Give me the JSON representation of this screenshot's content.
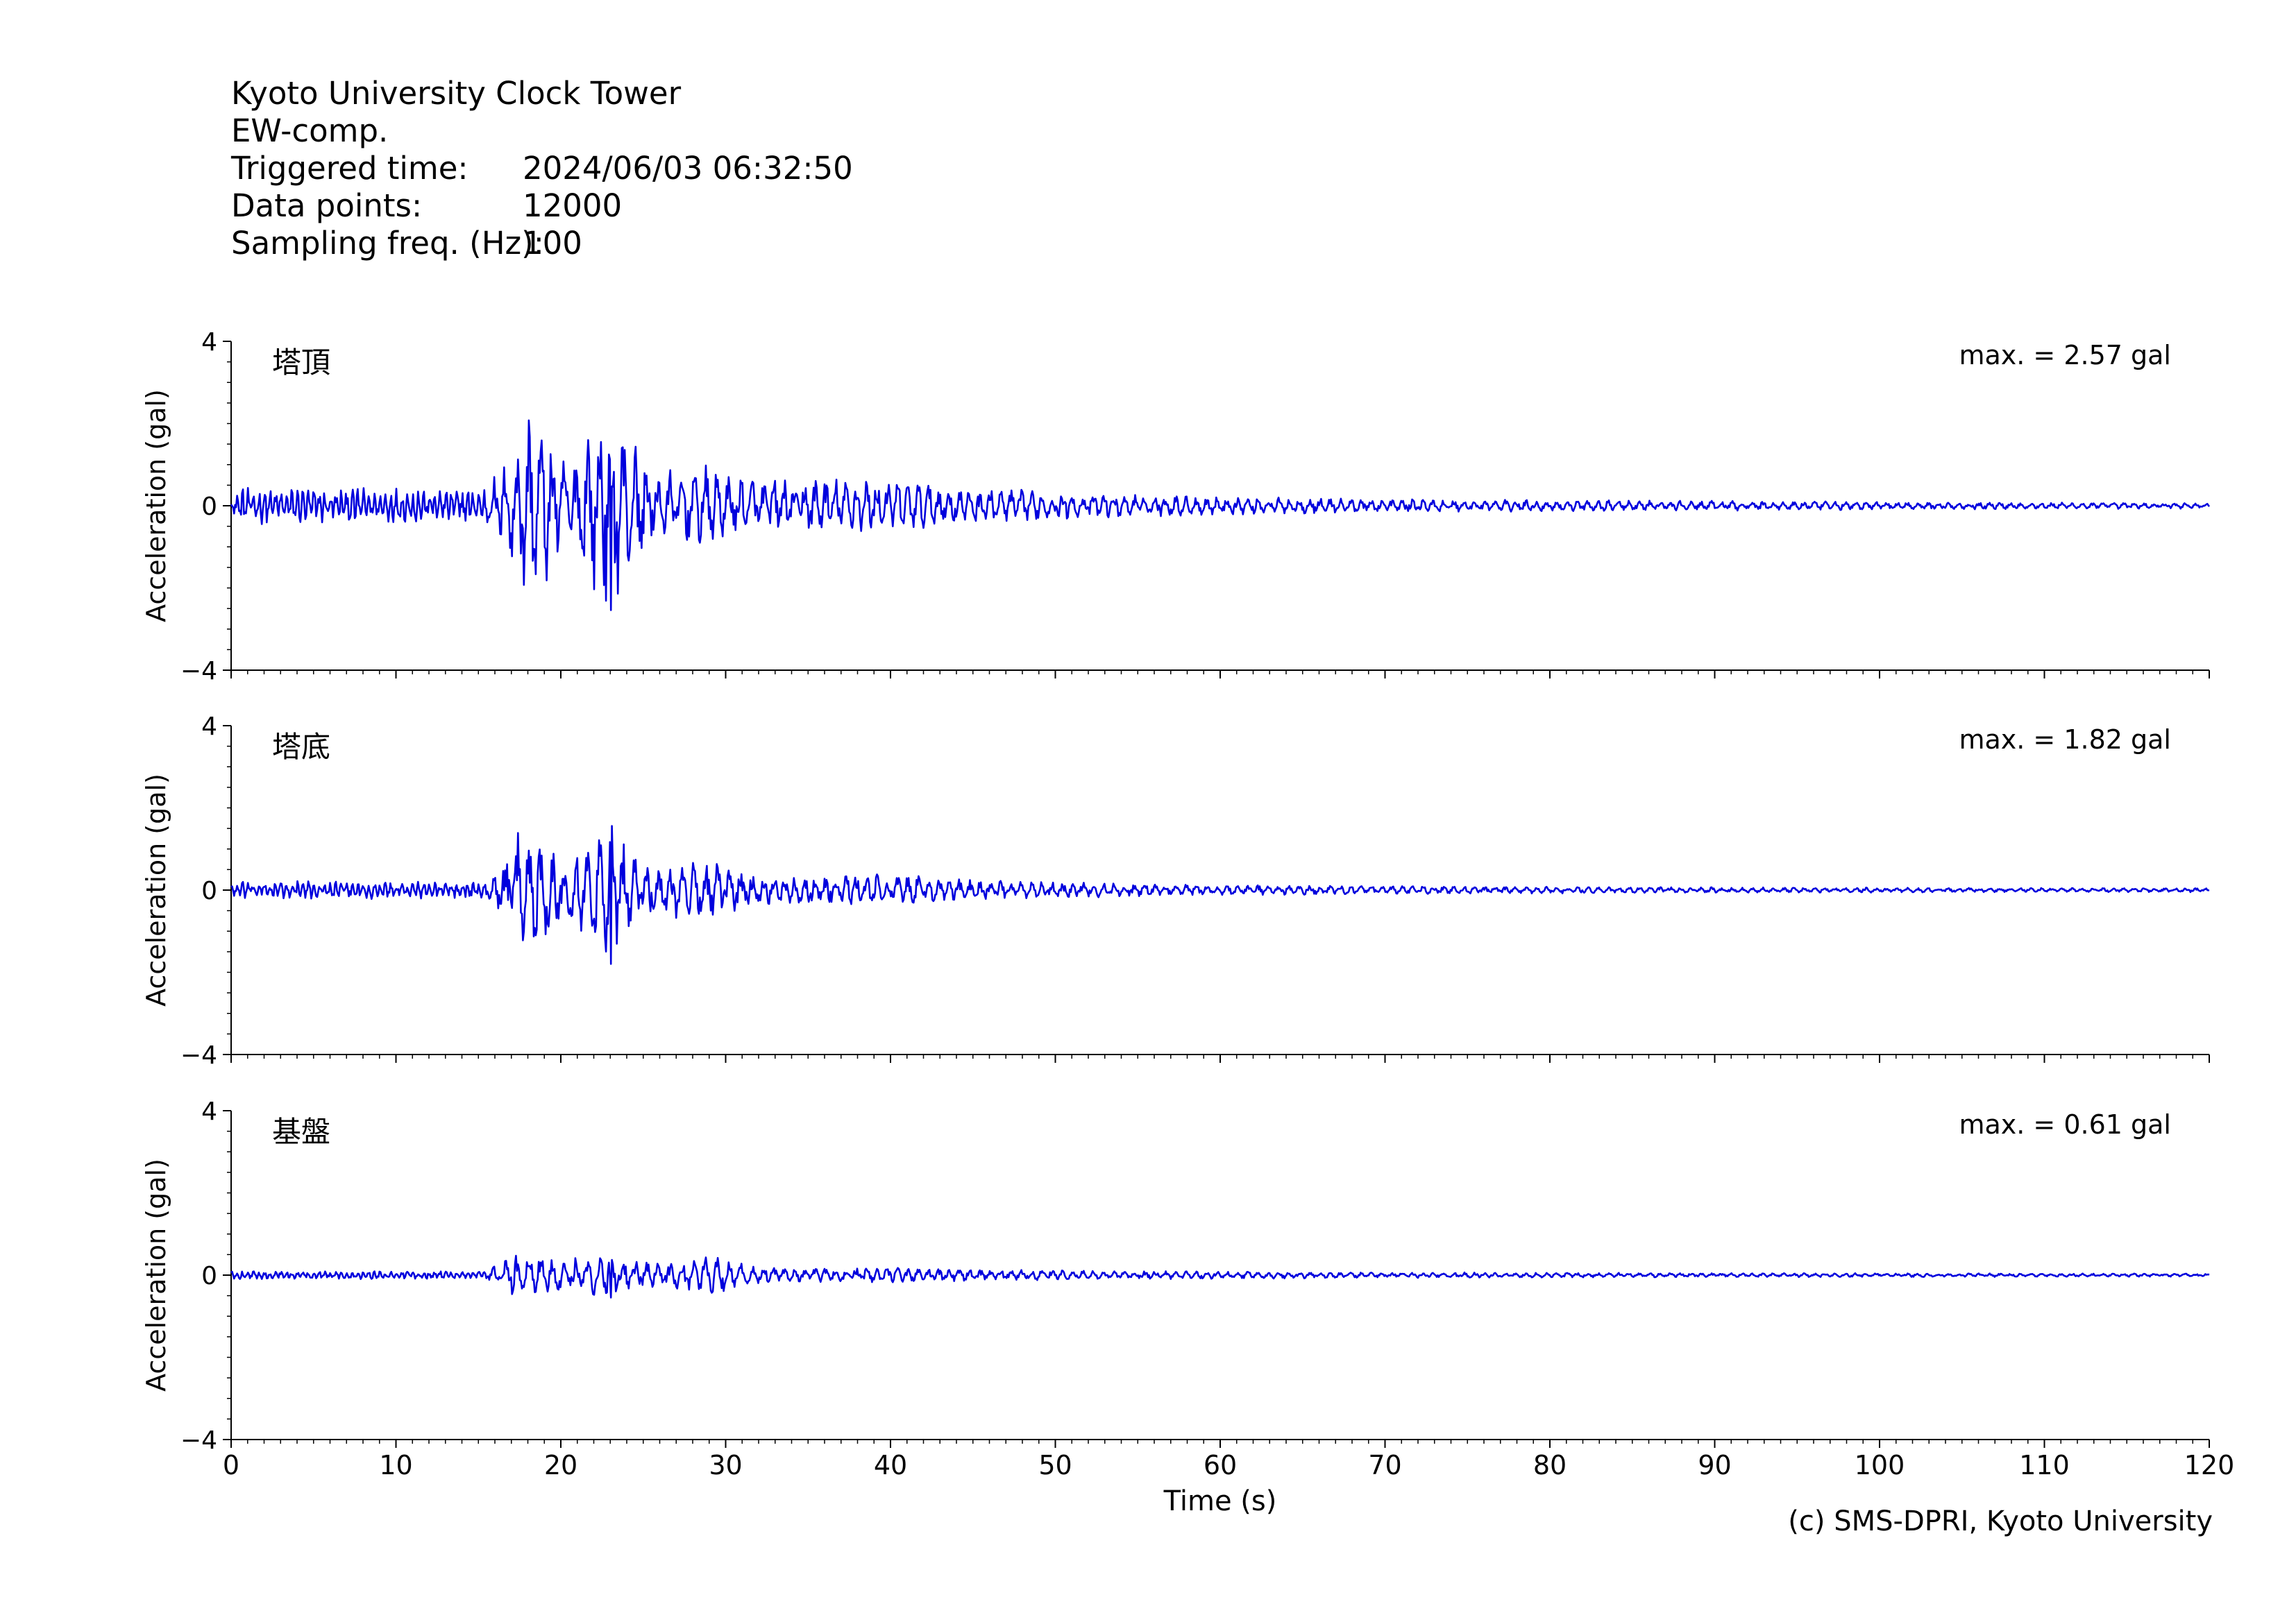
{
  "header": {
    "station": "Kyoto University Clock Tower",
    "component": "EW-comp.",
    "trigger_label": "Triggered time:",
    "trigger_value": "2024/06/03 06:32:50",
    "points_label": "Data points:",
    "points_value": "12000",
    "freq_label": "Sampling freq. (Hz):",
    "freq_value": "100"
  },
  "credit": "(c) SMS-DPRI, Kyoto University",
  "line_color": "#0000dd",
  "chart_data": {
    "type": "line",
    "xlabel": "Time (s)",
    "xlim": [
      0,
      120
    ],
    "xticks": [
      0,
      10,
      20,
      30,
      40,
      50,
      60,
      70,
      80,
      90,
      100,
      110,
      120
    ],
    "panels": [
      {
        "name": "塔頂",
        "max_label": "max. = 2.57 gal",
        "ylabel": "Acceleration (gal)",
        "ylim": [
          -4,
          4
        ],
        "yticks": [
          4,
          0,
          -4
        ],
        "ytick_labels": [
          "4",
          "0",
          "−4"
        ],
        "envelope_t": [
          0,
          15.5,
          16.5,
          17.5,
          19,
          20.5,
          21.5,
          23,
          24,
          26,
          29,
          32,
          36,
          40,
          45,
          50,
          55,
          60,
          70,
          80,
          90,
          100,
          110,
          120
        ],
        "envelope_a": [
          0.45,
          0.45,
          1.1,
          2.5,
          2.0,
          1.1,
          1.9,
          2.57,
          1.8,
          0.9,
          1.0,
          0.7,
          0.7,
          0.65,
          0.45,
          0.35,
          0.28,
          0.22,
          0.17,
          0.14,
          0.12,
          0.1,
          0.08,
          0.07
        ]
      },
      {
        "name": "塔底",
        "max_label": "max. = 1.82 gal",
        "ylabel": "Acceleration (gal)",
        "ylim": [
          -4,
          4
        ],
        "yticks": [
          4,
          0,
          -4
        ],
        "ytick_labels": [
          "4",
          "0",
          "−4"
        ],
        "envelope_t": [
          0,
          15.5,
          16.5,
          17.5,
          19,
          20.5,
          21.5,
          23,
          24,
          26,
          29,
          32,
          36,
          40,
          45,
          50,
          55,
          60,
          70,
          80,
          90,
          100,
          110,
          120
        ],
        "envelope_a": [
          0.22,
          0.22,
          0.8,
          1.6,
          1.3,
          0.8,
          1.2,
          1.82,
          1.2,
          0.65,
          0.75,
          0.35,
          0.35,
          0.4,
          0.25,
          0.2,
          0.16,
          0.13,
          0.1,
          0.08,
          0.07,
          0.06,
          0.05,
          0.05
        ]
      },
      {
        "name": "基盤",
        "max_label": "max. = 0.61 gal",
        "ylabel": "Acceleration (gal)",
        "ylim": [
          -4,
          4
        ],
        "yticks": [
          4,
          0,
          -4
        ],
        "ytick_labels": [
          "4",
          "0",
          "−4"
        ],
        "envelope_t": [
          0,
          15.5,
          16.5,
          17.5,
          19,
          20.5,
          21.5,
          23,
          24,
          26,
          29,
          32,
          36,
          40,
          45,
          50,
          55,
          60,
          70,
          80,
          90,
          100,
          110,
          120
        ],
        "envelope_a": [
          0.1,
          0.1,
          0.35,
          0.61,
          0.45,
          0.4,
          0.5,
          0.55,
          0.45,
          0.3,
          0.5,
          0.2,
          0.18,
          0.18,
          0.15,
          0.12,
          0.1,
          0.09,
          0.07,
          0.06,
          0.05,
          0.05,
          0.04,
          0.04
        ]
      }
    ]
  }
}
